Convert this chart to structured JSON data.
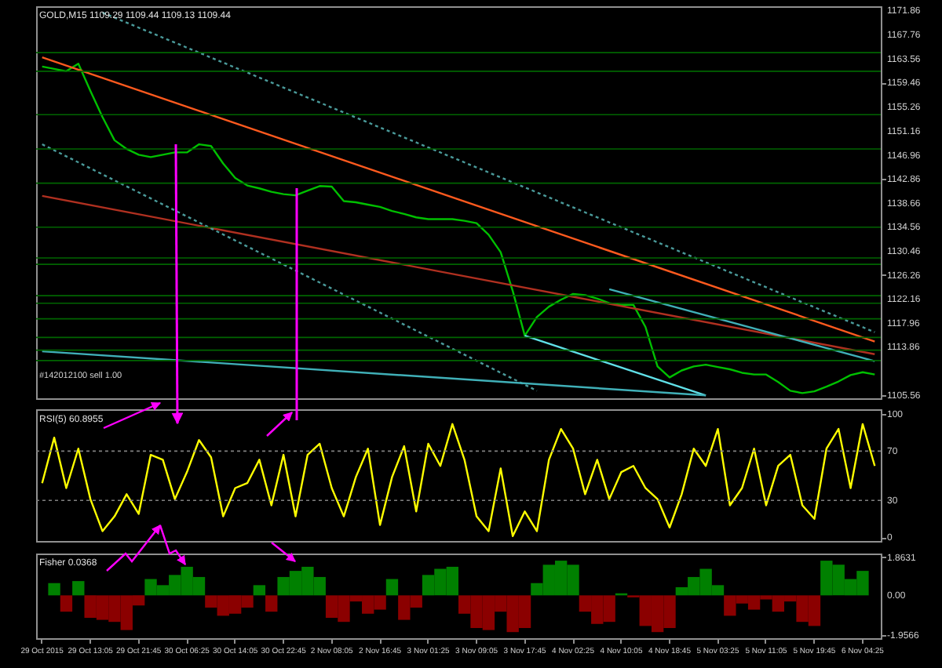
{
  "chart_data": [
    {
      "type": "line",
      "title": "GOLD,M15 1109.29 1109.44 1109.13 1109.44",
      "ylim": [
        1105,
        1172.6
      ],
      "tick_labels": "y",
      "categories": [
        null,
        null,
        null,
        null,
        null,
        null,
        null,
        null,
        null,
        null,
        null,
        null,
        null,
        null,
        null,
        null,
        null,
        null,
        null,
        null,
        null,
        null,
        null,
        null,
        null,
        null,
        null,
        null,
        null,
        null,
        null,
        null,
        null,
        null,
        null,
        null,
        null,
        null,
        null,
        null,
        null,
        null,
        null,
        null,
        null,
        null,
        null,
        null,
        null,
        null,
        null,
        null,
        null,
        null,
        null,
        null,
        null,
        null,
        null,
        null,
        null,
        null,
        null,
        null,
        null,
        null,
        null,
        null,
        null,
        null
      ],
      "yticks": [
        1105.56,
        1113.86,
        1117.96,
        1122.16,
        1126.26,
        1130.46,
        1134.56,
        1138.66,
        1142.86,
        1146.96,
        1151.16,
        1155.26,
        1159.46,
        1163.56,
        1167.76,
        1171.86
      ],
      "series": [
        {
          "color": "#00c000",
          "values": [
            1162.2,
            1161.8,
            1161.4,
            1162.7,
            1158.0,
            1153.5,
            1149.5,
            1148.0,
            1147.0,
            1146.6,
            1147.0,
            1147.4,
            1147.4,
            1148.8,
            1148.5,
            1145.5,
            1143.0,
            1141.7,
            1141.2,
            1140.6,
            1140.2,
            1140.0,
            1140.8,
            1141.6,
            1141.5,
            1139.0,
            1138.8,
            1138.4,
            1138.0,
            1137.3,
            1136.8,
            1136.2,
            1135.9,
            1135.9,
            1135.9,
            1135.6,
            1135.2,
            1133.2,
            1130.2,
            1123.5,
            1115.8,
            1119.0,
            1120.8,
            1122.0,
            1123.0,
            1122.8,
            1122.2,
            1121.4,
            1121.1,
            1121.1,
            1117.3,
            1110.5,
            1108.6,
            1109.8,
            1110.5,
            1110.8,
            1110.4,
            1110.0,
            1109.4,
            1109.1,
            1109.1,
            1107.8,
            1106.3,
            1105.9,
            1106.2,
            1107.0,
            1107.9,
            1109.0,
            1109.5,
            1109.1
          ]
        },
        {
          "type": "line",
          "color": "#ff5a1e",
          "values": [
            1163.8,
            null,
            null,
            null,
            null,
            null,
            null,
            null,
            null,
            null,
            null,
            null,
            null,
            null,
            null,
            null,
            null,
            null,
            null,
            null,
            null,
            null,
            null,
            null,
            null,
            null,
            null,
            null,
            null,
            null,
            null,
            null,
            null,
            null,
            null,
            null,
            null,
            null,
            null,
            null,
            null,
            null,
            null,
            null,
            null,
            null,
            null,
            null,
            null,
            null,
            null,
            null,
            null,
            null,
            null,
            null,
            null,
            null,
            null,
            null,
            null,
            null,
            null,
            null,
            null,
            null,
            null,
            null,
            null,
            1114.8
          ]
        },
        {
          "type": "line",
          "color": "#b03020",
          "values": [
            1139.9,
            null,
            null,
            null,
            null,
            null,
            null,
            null,
            null,
            null,
            null,
            null,
            null,
            null,
            null,
            null,
            null,
            null,
            null,
            null,
            null,
            null,
            null,
            null,
            null,
            null,
            null,
            null,
            null,
            null,
            null,
            null,
            null,
            null,
            null,
            null,
            null,
            null,
            null,
            null,
            null,
            null,
            null,
            null,
            null,
            null,
            null,
            null,
            null,
            null,
            null,
            null,
            null,
            null,
            null,
            null,
            null,
            null,
            null,
            null,
            null,
            null,
            null,
            null,
            null,
            null,
            null,
            null,
            null,
            1112.6
          ]
        },
        {
          "type": "line",
          "color": "#4a9a9a",
          "line_style": "dotted",
          "values": [
            null,
            null,
            null,
            null,
            null,
            1171.5,
            null,
            null,
            null,
            null,
            null,
            null,
            null,
            null,
            null,
            null,
            null,
            null,
            null,
            null,
            null,
            null,
            null,
            null,
            null,
            null,
            null,
            null,
            null,
            null,
            null,
            null,
            null,
            null,
            null,
            null,
            null,
            null,
            null,
            null,
            null,
            null,
            null,
            null,
            null,
            null,
            null,
            null,
            null,
            null,
            null,
            null,
            null,
            null,
            null,
            null,
            null,
            null,
            null,
            null,
            null,
            null,
            null,
            null,
            null,
            null,
            null,
            null,
            null,
            1116.4
          ]
        },
        {
          "type": "line",
          "color": "#4a9a9a",
          "line_style": "dotted",
          "values": [
            1148.8,
            null,
            null,
            null,
            null,
            null,
            null,
            null,
            null,
            null,
            null,
            null,
            null,
            null,
            null,
            null,
            null,
            null,
            null,
            null,
            null,
            null,
            null,
            null,
            null,
            null,
            null,
            null,
            null,
            null,
            null,
            null,
            null,
            null,
            null,
            null,
            null,
            null,
            null,
            null,
            null,
            1106.3,
            null,
            null,
            null,
            null,
            null,
            null,
            null,
            null,
            null,
            null,
            null,
            null,
            null,
            null,
            null,
            null,
            null,
            null,
            null,
            null,
            null,
            null,
            null,
            null,
            null,
            null,
            null,
            null
          ]
        },
        {
          "type": "line",
          "color": "#60e0e8",
          "values": [
            null,
            null,
            null,
            null,
            null,
            null,
            null,
            null,
            null,
            null,
            null,
            null,
            null,
            null,
            null,
            null,
            null,
            null,
            null,
            null,
            null,
            null,
            null,
            null,
            null,
            null,
            null,
            null,
            null,
            null,
            null,
            null,
            null,
            null,
            null,
            null,
            null,
            null,
            null,
            null,
            1115.8,
            null,
            null,
            null,
            null,
            null,
            null,
            null,
            null,
            null,
            null,
            null,
            null,
            null,
            null,
            1105.5,
            null,
            null,
            null,
            null,
            null,
            null,
            null,
            null,
            null,
            null,
            null,
            null,
            null,
            null
          ]
        },
        {
          "type": "line",
          "color": "#40b0b8",
          "values": [
            1113.1,
            null,
            null,
            null,
            null,
            null,
            null,
            null,
            null,
            null,
            null,
            null,
            null,
            null,
            null,
            null,
            null,
            null,
            null,
            null,
            null,
            null,
            null,
            null,
            null,
            null,
            null,
            null,
            null,
            null,
            null,
            null,
            null,
            null,
            null,
            null,
            null,
            null,
            null,
            null,
            null,
            null,
            null,
            null,
            null,
            null,
            null,
            null,
            null,
            null,
            null,
            null,
            null,
            null,
            null,
            1105.5,
            null,
            null,
            null,
            null,
            null,
            null,
            null,
            null,
            null,
            null,
            null,
            null,
            null,
            null
          ]
        },
        {
          "type": "line",
          "color": "#40b0b8",
          "values": [
            null,
            null,
            null,
            null,
            null,
            null,
            null,
            null,
            null,
            null,
            null,
            null,
            null,
            null,
            null,
            null,
            null,
            null,
            null,
            null,
            null,
            null,
            null,
            null,
            null,
            null,
            null,
            null,
            null,
            null,
            null,
            null,
            null,
            null,
            null,
            null,
            null,
            null,
            null,
            null,
            null,
            null,
            null,
            null,
            null,
            null,
            null,
            1123.8,
            null,
            null,
            null,
            null,
            null,
            null,
            null,
            null,
            null,
            null,
            null,
            null,
            null,
            null,
            null,
            null,
            null,
            null,
            null,
            null,
            null,
            1111.4
          ]
        }
      ],
      "ref_lines": [
        {
          "axis": "y",
          "value": 1164.6,
          "color": "#006400"
        },
        {
          "axis": "y",
          "value": 1161.4,
          "color": "#006400"
        },
        {
          "axis": "y",
          "value": 1153.9,
          "color": "#006400"
        },
        {
          "axis": "y",
          "value": 1148.0,
          "color": "#006400"
        },
        {
          "axis": "y",
          "value": 1142.1,
          "color": "#006400"
        },
        {
          "axis": "y",
          "value": 1134.5,
          "color": "#006400"
        },
        {
          "axis": "y",
          "value": 1129.2,
          "color": "#006400"
        },
        {
          "axis": "y",
          "value": 1128.1,
          "color": "#006400"
        },
        {
          "axis": "y",
          "value": 1122.7,
          "color": "#006400"
        },
        {
          "axis": "y",
          "value": 1121.4,
          "color": "#006400"
        },
        {
          "axis": "y",
          "value": 1118.7,
          "color": "#006400"
        },
        {
          "axis": "y",
          "value": 1115.5,
          "color": "#006400"
        },
        {
          "axis": "y",
          "value": 1113.3,
          "color": "#006400"
        },
        {
          "axis": "y",
          "value": 1111.5,
          "color": "#006400"
        }
      ],
      "annotations": [
        "#142012100 sell 1.00"
      ]
    },
    {
      "type": "line",
      "title": "RSI(5) 60.8955",
      "ylim": [
        -3,
        104
      ],
      "yticks": [
        0,
        30,
        70,
        100
      ],
      "tick_labels": "y",
      "categories": [
        null,
        null,
        null,
        null,
        null,
        null,
        null,
        null,
        null,
        null,
        null,
        null,
        null,
        null,
        null,
        null,
        null,
        null,
        null,
        null,
        null,
        null,
        null,
        null,
        null,
        null,
        null,
        null,
        null,
        null,
        null,
        null,
        null,
        null,
        null,
        null,
        null,
        null,
        null,
        null,
        null,
        null,
        null,
        null,
        null,
        null,
        null,
        null,
        null,
        null,
        null,
        null,
        null,
        null,
        null,
        null,
        null,
        null,
        null,
        null,
        null,
        null,
        null,
        null,
        null,
        null,
        null,
        null,
        null,
        null
      ],
      "series": [
        {
          "color": "#ffff00",
          "values": [
            44,
            81,
            40,
            72,
            31,
            5,
            17,
            35,
            19,
            67,
            63,
            31,
            53,
            79,
            65,
            17,
            40,
            44,
            63,
            26,
            67,
            17,
            67,
            76,
            40,
            17,
            49,
            72,
            10,
            49,
            74,
            21,
            76,
            58,
            92,
            63,
            17,
            5,
            56,
            1,
            21,
            5,
            63,
            88,
            72,
            35,
            63,
            31,
            53,
            58,
            40,
            31,
            8,
            35,
            72,
            58,
            88,
            26,
            40,
            72,
            26,
            58,
            67,
            26,
            15,
            72,
            88,
            40,
            92,
            58
          ]
        }
      ],
      "ref_lines": [
        {
          "axis": "y",
          "value": 70,
          "color": "#808080",
          "line_style": "dotted"
        },
        {
          "axis": "y",
          "value": 30,
          "color": "#808080",
          "line_style": "dotted"
        }
      ]
    },
    {
      "type": "bar",
      "title": "Fisher 0.0368",
      "ylim": [
        -2.1,
        2.05
      ],
      "yticks": [
        -1.9566,
        {
          "value": 0,
          "label": "0.00"
        },
        1.8631
      ],
      "categories": [
        "29 Oct 2015",
        null,
        null,
        null,
        "29 Oct 13:05",
        null,
        null,
        null,
        "29 Oct 21:45",
        null,
        null,
        null,
        "30 Oct 06:25",
        null,
        null,
        null,
        "30 Oct 14:05",
        null,
        null,
        null,
        "30 Oct 22:45",
        null,
        null,
        null,
        "2 Nov 08:05",
        null,
        null,
        null,
        "2 Nov 16:45",
        null,
        null,
        null,
        "3 Nov 01:25",
        null,
        null,
        null,
        "3 Nov 09:05",
        null,
        null,
        null,
        "3 Nov 17:45",
        null,
        null,
        null,
        "4 Nov 02:25",
        null,
        null,
        null,
        "4 Nov 10:05",
        null,
        null,
        null,
        "4 Nov 18:45",
        null,
        null,
        null,
        "5 Nov 03:25",
        null,
        null,
        null,
        "5 Nov 11:05",
        null,
        null,
        null,
        "5 Nov 19:45",
        null,
        null,
        null,
        "6 Nov 04:25",
        null
      ],
      "values": [
        null,
        0.6,
        -0.8,
        0.7,
        -1.1,
        -1.2,
        -1.3,
        -1.7,
        -0.5,
        0.8,
        0.5,
        1.0,
        1.4,
        0.9,
        -0.6,
        -1.0,
        -0.9,
        -0.6,
        0.5,
        -0.8,
        0.9,
        1.2,
        1.4,
        0.9,
        -1.1,
        -1.3,
        -0.3,
        -0.9,
        -0.7,
        0.8,
        -1.2,
        -0.6,
        1.0,
        1.3,
        1.4,
        -0.9,
        -1.6,
        -1.7,
        -0.8,
        -1.8,
        -1.6,
        0.6,
        1.5,
        1.7,
        1.5,
        -0.8,
        -1.4,
        -1.3,
        0.1,
        -0.1,
        -1.5,
        -1.8,
        -1.6,
        0.4,
        0.9,
        1.3,
        0.5,
        -1.0,
        -0.4,
        -0.7,
        -0.2,
        -0.8,
        -0.3,
        -1.3,
        -1.5,
        1.7,
        1.5,
        0.8,
        1.2,
        null
      ],
      "colors": [
        null,
        "#008000",
        "#8b0000",
        "#008000",
        "#8b0000",
        "#8b0000",
        "#8b0000",
        "#8b0000",
        "#8b0000",
        "#008000",
        "#008000",
        "#008000",
        "#008000",
        "#008000",
        "#8b0000",
        "#8b0000",
        "#8b0000",
        "#8b0000",
        "#008000",
        "#8b0000",
        "#008000",
        "#008000",
        "#008000",
        "#008000",
        "#8b0000",
        "#8b0000",
        "#8b0000",
        "#8b0000",
        "#8b0000",
        "#008000",
        "#8b0000",
        "#8b0000",
        "#008000",
        "#008000",
        "#008000",
        "#8b0000",
        "#8b0000",
        "#8b0000",
        "#8b0000",
        "#8b0000",
        "#8b0000",
        "#008000",
        "#008000",
        "#008000",
        "#008000",
        "#8b0000",
        "#8b0000",
        "#8b0000",
        "#008000",
        "#8b0000",
        "#8b0000",
        "#8b0000",
        "#8b0000",
        "#008000",
        "#008000",
        "#008000",
        "#008000",
        "#8b0000",
        "#8b0000",
        "#8b0000",
        "#8b0000",
        "#8b0000",
        "#8b0000",
        "#8b0000",
        "#8b0000",
        "#008000",
        "#008000",
        "#008000",
        "#008000",
        null
      ]
    }
  ]
}
